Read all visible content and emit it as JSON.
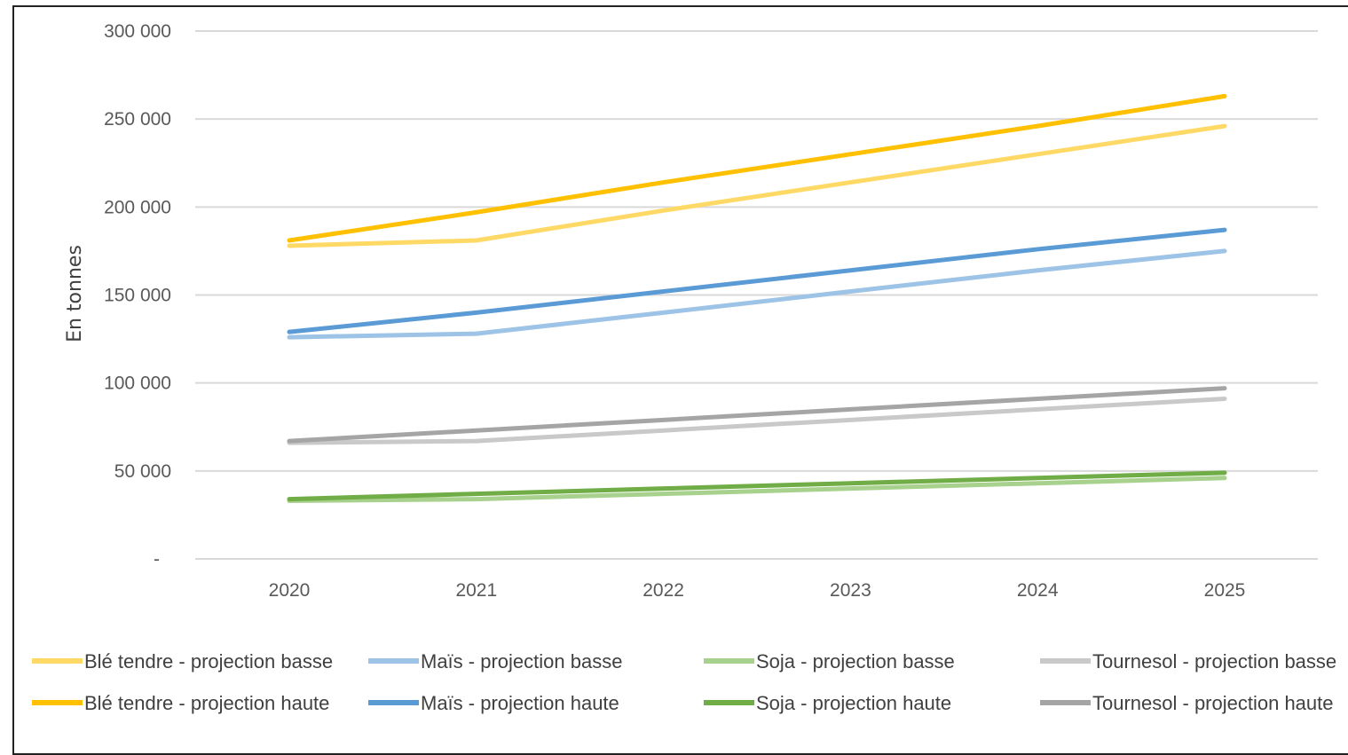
{
  "chart_data": {
    "type": "line",
    "title": "",
    "xlabel": "",
    "ylabel": "En tonnes",
    "x": [
      "2020",
      "2021",
      "2022",
      "2023",
      "2024",
      "2025"
    ],
    "ylim": [
      0,
      300000
    ],
    "yticks": [
      0,
      50000,
      100000,
      150000,
      200000,
      250000,
      300000
    ],
    "ytick_labels": [
      "-",
      "50 000",
      "100 000",
      "150 000",
      "200 000",
      "250 000",
      "300 000"
    ],
    "grid": "horizontal",
    "legend_position": "bottom",
    "series": [
      {
        "name": "Blé tendre - projection basse",
        "color": "#FFD966",
        "values": [
          178000,
          181000,
          198000,
          214000,
          230000,
          246000
        ]
      },
      {
        "name": "Maïs - projection basse",
        "color": "#9DC3E6",
        "values": [
          126000,
          128000,
          140000,
          152000,
          164000,
          175000
        ]
      },
      {
        "name": "Soja - projection basse",
        "color": "#A9D18E",
        "values": [
          33000,
          34000,
          37000,
          40000,
          43000,
          46000
        ]
      },
      {
        "name": "Tournesol - projection basse",
        "color": "#C9C9C9",
        "values": [
          66000,
          67000,
          73000,
          79000,
          85000,
          91000
        ]
      },
      {
        "name": "Blé tendre - projection haute",
        "color": "#FFC000",
        "values": [
          181000,
          197000,
          214000,
          230000,
          246000,
          263000
        ]
      },
      {
        "name": "Maïs - projection haute",
        "color": "#5B9BD5",
        "values": [
          129000,
          140000,
          152000,
          164000,
          176000,
          187000
        ]
      },
      {
        "name": "Soja - projection haute",
        "color": "#70AD47",
        "values": [
          34000,
          37000,
          40000,
          43000,
          46000,
          49000
        ]
      },
      {
        "name": "Tournesol - projection haute",
        "color": "#A5A5A5",
        "values": [
          67000,
          73000,
          79000,
          85000,
          91000,
          97000
        ]
      }
    ]
  }
}
